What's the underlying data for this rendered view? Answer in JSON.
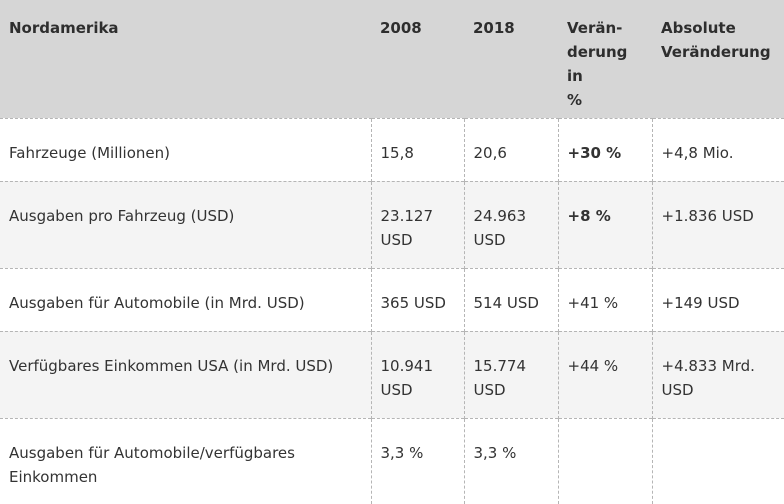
{
  "header": {
    "region": "Nordamerika",
    "year1": "2008",
    "year2": "2018",
    "change_pct": "Verän-\nderung in\n%",
    "change_abs": "Absolute Veränderung"
  },
  "rows": [
    {
      "label": "Fahrzeuge (Millionen)",
      "v2008": "15,8",
      "v2018": "20,6",
      "pct": "+30 %",
      "abs": "+4,8 Mio."
    },
    {
      "label": "Ausgaben pro Fahrzeug (USD)",
      "v2008": "23.127 USD",
      "v2018": "24.963 USD",
      "pct": "+8 %",
      "abs": "+1.836 USD"
    },
    {
      "label": "Ausgaben für Automobile (in Mrd. USD)",
      "v2008": "365 USD",
      "v2018": "514 USD",
      "pct": "+41 %",
      "abs": "+149 USD"
    },
    {
      "label": "Verfügbares Einkommen USA (in Mrd. USD)",
      "v2008": "10.941 USD",
      "v2018": "15.774 USD",
      "pct": "+44 %",
      "abs": "+4.833 Mrd. USD"
    },
    {
      "label": "Ausgaben für Automobile/verfügbares Einkommen",
      "v2008": "3,3 %",
      "v2018": "3,3 %",
      "pct": "",
      "abs": ""
    }
  ]
}
